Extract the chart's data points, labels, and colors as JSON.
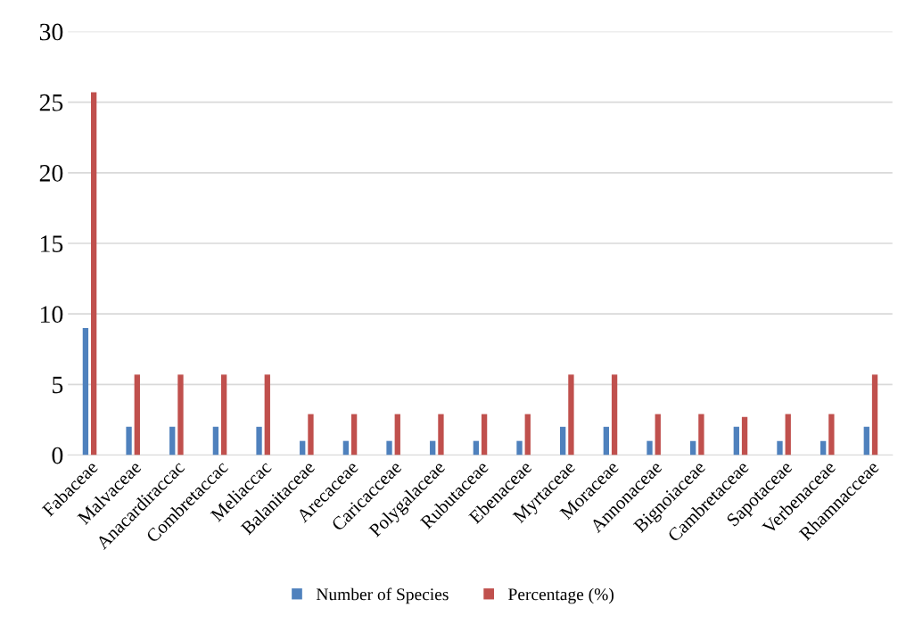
{
  "chart_data": {
    "type": "bar",
    "categories": [
      "Fabaceae",
      "Malvaceae",
      "Anacardiraccac",
      "Combretaccac",
      "Meliaccac",
      "Balanitaceae",
      "Arecaceae",
      "Caricacceae",
      "Polygalaceae",
      "Rubutaceae",
      "Ebenaceae",
      "Myrtaceae",
      "Moraceae",
      "Annonaceae",
      "Bignoiaceae",
      "Cambretaceae",
      "Sapotaceae",
      "Verbenaceae",
      "Rhamnacceae"
    ],
    "series": [
      {
        "name": "Number of Species",
        "color": "#4f81bd",
        "values": [
          9,
          2,
          2,
          2,
          2,
          1,
          1,
          1,
          1,
          1,
          1,
          2,
          2,
          1,
          1,
          2,
          1,
          1,
          2
        ]
      },
      {
        "name": "Percentage (%)",
        "color": "#c0504d",
        "values": [
          25.7,
          5.7,
          5.7,
          5.7,
          5.7,
          2.9,
          2.9,
          2.9,
          2.9,
          2.9,
          2.9,
          5.7,
          5.7,
          2.9,
          2.9,
          2.7,
          2.9,
          2.9,
          5.7
        ]
      }
    ],
    "ylim": [
      0,
      30
    ],
    "yticks": [
      0,
      5,
      10,
      15,
      20,
      25,
      30
    ],
    "grid": "y",
    "legend": "bottom"
  }
}
